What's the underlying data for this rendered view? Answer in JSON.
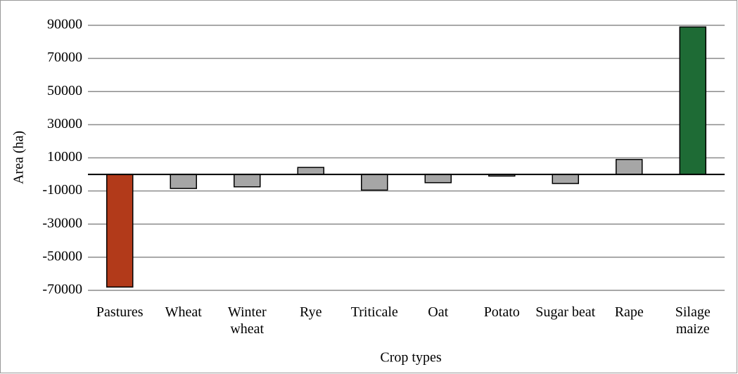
{
  "chart_data": {
    "type": "bar",
    "categories": [
      "Pastures",
      "Wheat",
      "Winter wheat",
      "Rye",
      "Triticale",
      "Oat",
      "Potato",
      "Sugar beat",
      "Rape",
      "Silage maize"
    ],
    "values": [
      -68000,
      -8500,
      -7500,
      4200,
      -9500,
      -5000,
      -1000,
      -5500,
      9000,
      89000
    ],
    "colors": [
      "#b23a1a",
      "#a6a6a6",
      "#a6a6a6",
      "#a6a6a6",
      "#a6a6a6",
      "#a6a6a6",
      "#a6a6a6",
      "#a6a6a6",
      "#a6a6a6",
      "#1e6b35"
    ],
    "ylim": [
      -70000,
      90000
    ],
    "yticks": [
      -70000,
      -50000,
      -30000,
      -10000,
      10000,
      30000,
      50000,
      70000,
      90000
    ],
    "grid": true,
    "y_label": "Area (ha)",
    "x_label": "Crop types"
  }
}
